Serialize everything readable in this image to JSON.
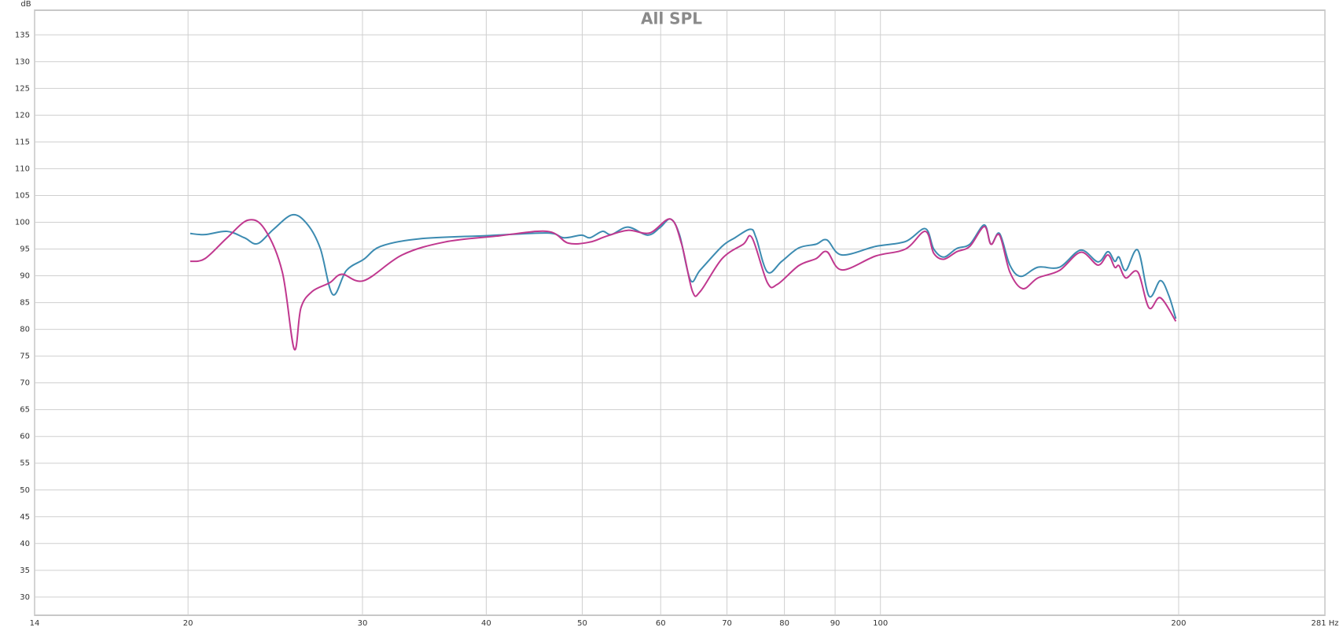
{
  "chart_data": {
    "type": "line",
    "title": "All SPL",
    "y_label": "dB",
    "log_x": true,
    "grid": true,
    "xlim": [
      14,
      281
    ],
    "ylim": [
      26.6,
      139.6
    ],
    "xticks": [
      14,
      20,
      30,
      40,
      50,
      60,
      70,
      80,
      90,
      100,
      200,
      {
        "value": 281,
        "label": "281 Hz"
      }
    ],
    "yticks": [
      30,
      35,
      40,
      45,
      50,
      55,
      60,
      65,
      70,
      75,
      80,
      85,
      90,
      95,
      100,
      105,
      110,
      115,
      120,
      125,
      130,
      135
    ],
    "series": [
      {
        "color": "#3c8bb1",
        "x": [
          20.1,
          20.8,
          21.9,
          22.8,
          23.5,
          24.4,
          25.5,
          26.4,
          27.2,
          28.0,
          28.9,
          30.1,
          31.3,
          34.2,
          40.1,
          46.1,
          47.9,
          49.9,
          50.9,
          52.4,
          53.5,
          55.6,
          58.2,
          59.9,
          61.4,
          62.7,
          64.3,
          65.8,
          69.2,
          71.3,
          73.9,
          74.9,
          76.9,
          79.5,
          82.7,
          86.1,
          88.3,
          91.4,
          98.9,
          106.0,
          111.0,
          113.2,
          115.9,
          119.4,
          123.1,
          127.3,
          129.3,
          131.9,
          135.1,
          138.6,
          144.2,
          151.6,
          159.3,
          165.8,
          169.7,
          172.4,
          174.1,
          176.9,
          181.9,
          186.7,
          191.7,
          195.5,
          198.7
        ],
        "values": [
          97.9,
          97.7,
          98.3,
          97.1,
          96.0,
          98.7,
          101.4,
          99.6,
          95.1,
          86.5,
          91.0,
          93.1,
          95.5,
          96.9,
          97.5,
          98.0,
          97.1,
          97.6,
          97.1,
          98.3,
          97.7,
          99.1,
          97.6,
          99.0,
          100.6,
          97.6,
          89.2,
          91.1,
          95.5,
          97.1,
          98.7,
          97.1,
          90.7,
          92.7,
          95.2,
          95.9,
          96.7,
          93.9,
          95.5,
          96.4,
          98.8,
          95.0,
          93.5,
          95.1,
          95.9,
          99.5,
          95.9,
          97.9,
          92.0,
          89.9,
          91.6,
          91.6,
          94.8,
          92.6,
          94.5,
          92.7,
          93.5,
          91.0,
          94.8,
          86.2,
          89.1,
          86.3,
          82.0
        ]
      },
      {
        "color": "#c0388f",
        "x": [
          20.1,
          20.8,
          21.9,
          23.0,
          23.9,
          24.9,
          25.6,
          26.0,
          26.7,
          27.8,
          28.6,
          30.1,
          32.9,
          36.3,
          40.9,
          46.1,
          48.4,
          50.9,
          52.9,
          55.6,
          58.5,
          61.4,
          63.0,
          64.6,
          65.8,
          69.2,
          72.7,
          74.2,
          76.9,
          78.7,
          82.7,
          86.1,
          88.3,
          91.4,
          98.9,
          106.0,
          111.0,
          113.2,
          115.9,
          119.4,
          123.1,
          127.3,
          129.3,
          131.9,
          135.1,
          139.2,
          144.2,
          151.6,
          159.3,
          165.8,
          169.7,
          172.4,
          174.1,
          176.9,
          181.9,
          186.7,
          191.7,
          198.7
        ],
        "values": [
          92.7,
          93.2,
          97.1,
          100.4,
          98.7,
          90.7,
          76.3,
          84.0,
          87.1,
          88.7,
          90.3,
          89.1,
          93.9,
          96.3,
          97.4,
          98.3,
          96.1,
          96.3,
          97.4,
          98.5,
          98.0,
          100.6,
          95.9,
          87.1,
          87.1,
          93.2,
          95.9,
          97.1,
          88.7,
          88.4,
          91.9,
          93.2,
          94.5,
          91.1,
          93.7,
          95.0,
          98.3,
          94.2,
          93.1,
          94.5,
          95.5,
          99.2,
          95.9,
          97.6,
          90.7,
          87.6,
          89.6,
          91.0,
          94.4,
          92.0,
          93.9,
          91.6,
          91.9,
          89.6,
          90.7,
          84.0,
          85.9,
          81.5
        ]
      }
    ]
  }
}
